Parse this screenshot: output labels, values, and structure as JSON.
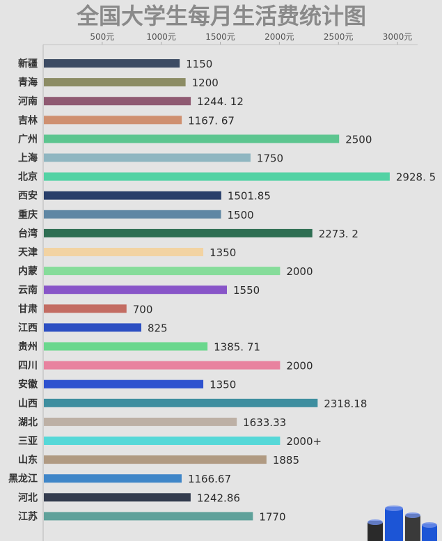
{
  "chart_data": {
    "type": "bar",
    "orientation": "horizontal",
    "title": "全国大学生每月生活费统计图",
    "x_ticks": [
      {
        "label": "500元",
        "value": 500
      },
      {
        "label": "1000元",
        "value": 1000
      },
      {
        "label": "1500元",
        "value": 1500
      },
      {
        "label": "2000元",
        "value": 2000
      },
      {
        "label": "2500元",
        "value": 2500
      },
      {
        "label": "3000元",
        "value": 3000
      }
    ],
    "xlim": [
      0,
      3100
    ],
    "grid": false,
    "bars": [
      {
        "category": "新疆",
        "value": 1150,
        "label": "1150",
        "color": "#3c4b63"
      },
      {
        "category": "青海",
        "value": 1200,
        "label": "1200",
        "color": "#8c8c64"
      },
      {
        "category": "河南",
        "value": 1244.12,
        "label": "1244. 12",
        "color": "#8f5a72"
      },
      {
        "category": "吉林",
        "value": 1167.67,
        "label": "1167. 67",
        "color": "#cf9070"
      },
      {
        "category": "广州",
        "value": 2500,
        "label": "2500",
        "color": "#5cc58f"
      },
      {
        "category": "上海",
        "value": 1750,
        "label": "1750",
        "color": "#8fb6c1"
      },
      {
        "category": "北京",
        "value": 2928.5,
        "label": "2928. 5",
        "color": "#53d2a4"
      },
      {
        "category": "西安",
        "value": 1501.85,
        "label": "1501.85",
        "color": "#283e6a"
      },
      {
        "category": "重庆",
        "value": 1500,
        "label": "1500",
        "color": "#5f87a4"
      },
      {
        "category": "台湾",
        "value": 2273.2,
        "label": "2273. 2",
        "color": "#2e6e52"
      },
      {
        "category": "天津",
        "value": 1350,
        "label": "1350",
        "color": "#f2d3a2"
      },
      {
        "category": "内蒙",
        "value": 2000,
        "label": "2000",
        "color": "#86dc9a"
      },
      {
        "category": "云南",
        "value": 1550,
        "label": "1550",
        "color": "#8855c8"
      },
      {
        "category": "甘肃",
        "value": 700,
        "label": "700",
        "color": "#c36c62"
      },
      {
        "category": "江西",
        "value": 825,
        "label": "825",
        "color": "#2c4fc2"
      },
      {
        "category": "贵州",
        "value": 1385.71,
        "label": "1385. 71",
        "color": "#6ad78d"
      },
      {
        "category": "四川",
        "value": 2000,
        "label": "2000",
        "color": "#e8829f"
      },
      {
        "category": "安徽",
        "value": 1350,
        "label": "1350",
        "color": "#2e52cf"
      },
      {
        "category": "山西",
        "value": 2318.18,
        "label": "2318.18",
        "color": "#3e8e9f"
      },
      {
        "category": "湖北",
        "value": 1633.33,
        "label": "1633.33",
        "color": "#bdb0a5"
      },
      {
        "category": "三亚",
        "value": 2000,
        "label": "2000+",
        "color": "#56d8d8"
      },
      {
        "category": "山东",
        "value": 1885,
        "label": "1885",
        "color": "#b09a82"
      },
      {
        "category": "黑龙江",
        "value": 1166.67,
        "label": "1166.67",
        "color": "#3f86c8"
      },
      {
        "category": "河北",
        "value": 1242.86,
        "label": "1242.86",
        "color": "#343c4e"
      },
      {
        "category": "江苏",
        "value": 1770,
        "label": "1770",
        "color": "#5fa19a"
      }
    ]
  }
}
